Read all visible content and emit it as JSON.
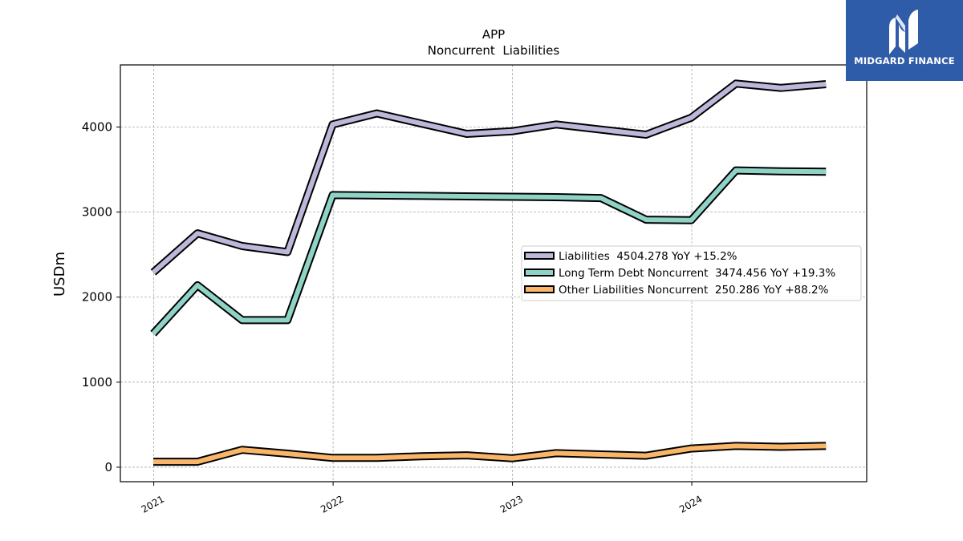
{
  "chart_data": {
    "type": "line",
    "title": "APP",
    "subtitle": "Noncurrent  Liabilities",
    "xlabel": "",
    "ylabel": "USDm",
    "xlim": [
      "2020-10-25",
      "2024-12-22"
    ],
    "ylim": [
      -170,
      4730
    ],
    "yticks": [
      0,
      1000,
      2000,
      3000,
      4000
    ],
    "xticks": [
      {
        "date": "2021-01-01",
        "label": "2021"
      },
      {
        "date": "2022-01-01",
        "label": "2022"
      },
      {
        "date": "2023-01-01",
        "label": "2023"
      },
      {
        "date": "2024-01-01",
        "label": "2024"
      }
    ],
    "grid": true,
    "legend_position": "center-right",
    "x": [
      "2020-12-31",
      "2021-03-31",
      "2021-06-30",
      "2021-09-30",
      "2021-12-31",
      "2022-03-31",
      "2022-06-30",
      "2022-09-30",
      "2022-12-31",
      "2023-03-31",
      "2023-06-30",
      "2023-09-30",
      "2023-12-31",
      "2024-03-31",
      "2024-06-30",
      "2024-09-30"
    ],
    "series": [
      {
        "name": "Liabilities",
        "legend": "Liabilities  4504.278 YoY +15.2%",
        "color": "#bcb8d9",
        "values": [
          2290,
          2750,
          2600,
          2530,
          4030,
          4160,
          4040,
          3920,
          3950,
          4030,
          3970,
          3910,
          4110,
          4510,
          4460,
          4504
        ]
      },
      {
        "name": "Long Term Debt Noncurrent",
        "legend": "Long Term Debt Noncurrent  3474.456 YoY +19.3%",
        "color": "#8ed3c5",
        "values": [
          1570,
          2140,
          1730,
          1730,
          3200,
          3195,
          3190,
          3185,
          3180,
          3175,
          3165,
          2910,
          2905,
          3490,
          3480,
          3474
        ]
      },
      {
        "name": "Other Liabilities Noncurrent",
        "legend": "Other Liabilities Noncurrent  250.286 YoY +88.2%",
        "color": "#f9b66a",
        "values": [
          65,
          65,
          205,
          160,
          110,
          110,
          130,
          140,
          105,
          165,
          150,
          135,
          220,
          250,
          240,
          250
        ]
      }
    ]
  },
  "logo": {
    "text": "MIDGARD FINANCE",
    "bg_color": "#2f5ca8",
    "text_color": "#ffffff"
  }
}
